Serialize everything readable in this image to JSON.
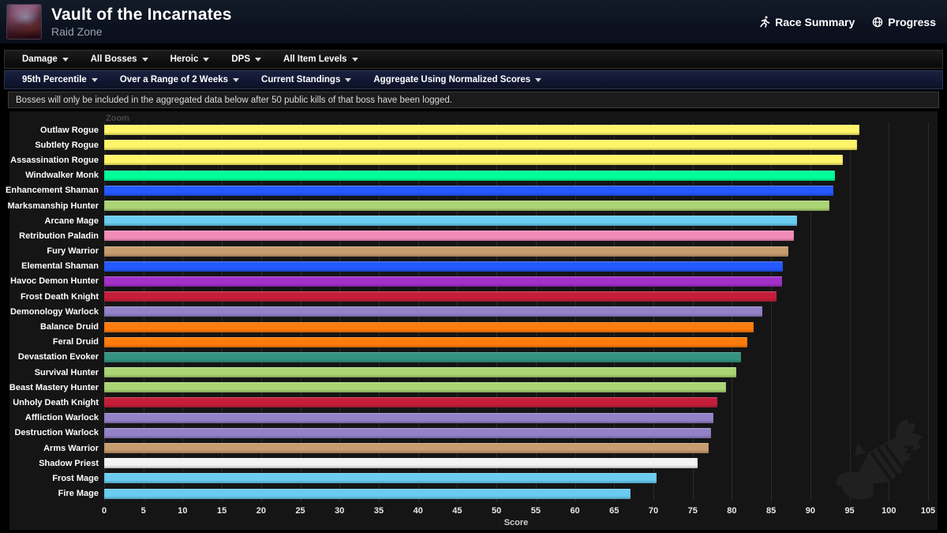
{
  "header": {
    "title": "Vault of the Incarnates",
    "subtitle": "Raid Zone",
    "race_summary_label": "Race Summary",
    "progress_label": "Progress"
  },
  "filters_primary": {
    "metric": "Damage",
    "bosses": "All Bosses",
    "difficulty": "Heroic",
    "role": "DPS",
    "item_levels": "All Item Levels"
  },
  "filters_secondary": {
    "percentile": "95th Percentile",
    "range": "Over a Range of 2 Weeks",
    "standings": "Current Standings",
    "aggregation": "Aggregate Using Normalized Scores"
  },
  "notice_text": "Bosses will only be included in the aggregated data below after 50 public kills of that boss have been logged.",
  "chart_labels": {
    "zoom": "Zoom"
  },
  "chart_data": {
    "type": "bar",
    "orientation": "horizontal",
    "xlabel": "Score",
    "xlim": [
      0,
      105
    ],
    "xticks": [
      0,
      5,
      10,
      15,
      20,
      25,
      30,
      35,
      40,
      45,
      50,
      55,
      60,
      65,
      70,
      75,
      80,
      85,
      90,
      95,
      100,
      105
    ],
    "grid": true,
    "legend": "none",
    "categories": [
      "Outlaw Rogue",
      "Subtlety Rogue",
      "Assassination Rogue",
      "Windwalker Monk",
      "Enhancement Shaman",
      "Marksmanship Hunter",
      "Arcane Mage",
      "Retribution Paladin",
      "Fury Warrior",
      "Elemental Shaman",
      "Havoc Demon Hunter",
      "Frost Death Knight",
      "Demonology Warlock",
      "Balance Druid",
      "Feral Druid",
      "Devastation Evoker",
      "Survival Hunter",
      "Beast Mastery Hunter",
      "Unholy Death Knight",
      "Affliction Warlock",
      "Destruction Warlock",
      "Arms Warrior",
      "Shadow Priest",
      "Frost Mage",
      "Fire Mage"
    ],
    "values": [
      96.2,
      95.9,
      94.1,
      93.1,
      92.9,
      92.4,
      88.3,
      87.9,
      87.2,
      86.5,
      86.4,
      85.7,
      83.9,
      82.8,
      82.0,
      81.2,
      80.6,
      79.3,
      78.1,
      77.6,
      77.3,
      77.0,
      75.6,
      70.4,
      67.1
    ],
    "colors": [
      "#FFF569",
      "#FFF569",
      "#FFF569",
      "#00FF98",
      "#2459FF",
      "#ABD473",
      "#69CCF0",
      "#F48CBA",
      "#C79C6E",
      "#2459FF",
      "#A330C9",
      "#C41E3A",
      "#9482C9",
      "#FF7C0A",
      "#FF7C0A",
      "#33937F",
      "#ABD473",
      "#ABD473",
      "#C41E3A",
      "#9482C9",
      "#9482C9",
      "#C79C6E",
      "#F2F2F2",
      "#69CCF0",
      "#69CCF0"
    ]
  }
}
